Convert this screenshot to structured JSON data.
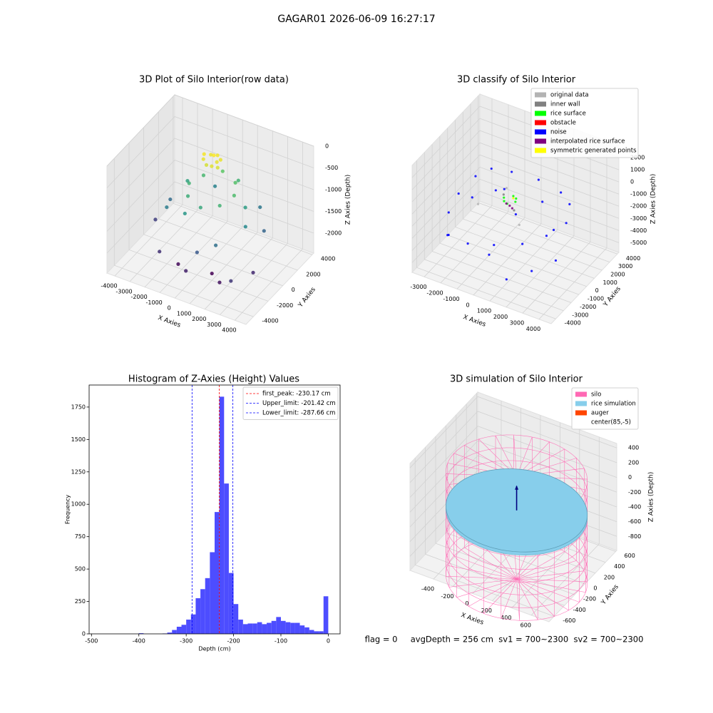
{
  "title": "GAGAR01 2026-06-09 16:27:17",
  "footer": "flag = 0     avgDepth = 256 cm  sv1 = 700~2300  sv2 = 700~2300",
  "chart_data": [
    {
      "type": "scatter3d",
      "title": "3D Plot of Silo Interior(row data)",
      "xlabel": "X Axies",
      "ylabel": "Y Axies",
      "zlabel": "Z Axies (Depth)",
      "xlim": [
        -4520,
        4740
      ],
      "ylim": [
        -5000,
        4200
      ],
      "zlim": [
        -2460,
        0
      ],
      "xticks": [
        -4000,
        -3000,
        -2000,
        -1000,
        0,
        1000,
        2000,
        3000,
        4000
      ],
      "yticks": [
        -4000,
        -2000,
        0,
        2000,
        4000
      ],
      "zticks": [
        -2000,
        -1500,
        -1000,
        -500,
        0
      ],
      "colormap": "viridis",
      "grid": true,
      "series": [
        {
          "x": [
            -600,
            -300,
            0,
            300,
            500,
            200,
            -200,
            -500,
            100,
            400,
            1500,
            1060,
            0,
            -1060,
            -1500,
            -1060,
            0,
            1060,
            2000,
            -2000,
            800,
            -800,
            2500,
            -2500,
            1500,
            -1000,
            3000,
            -3000,
            500,
            2000,
            -3500,
            -2000,
            0,
            2000,
            3500,
            1000,
            -1000,
            3000
          ],
          "y": [
            200,
            500,
            300,
            100,
            -200,
            -400,
            -300,
            -100,
            600,
            400,
            0,
            1060,
            1500,
            1060,
            0,
            -1060,
            -1500,
            -1060,
            500,
            800,
            2000,
            -2000,
            -500,
            -1000,
            -2500,
            2500,
            1000,
            500,
            -3000,
            2500,
            -500,
            -3000,
            -3500,
            -3000,
            -1500,
            -2000,
            -2500,
            -3500
          ],
          "z": [
            -150,
            -180,
            -120,
            -200,
            -250,
            -220,
            -260,
            -200,
            -160,
            -190,
            -800,
            -750,
            -700,
            -850,
            -900,
            -950,
            -1000,
            -900,
            -1100,
            -1050,
            -900,
            -1150,
            -1300,
            -1400,
            -1500,
            -1350,
            -1600,
            -1550,
            -1700,
            -1450,
            -1900,
            -2000,
            -2100,
            -2200,
            -2050,
            -2300,
            -2250,
            -1950
          ]
        }
      ]
    },
    {
      "type": "scatter3d",
      "title": "3D classify of Silo Interior",
      "xlabel": "X Axies",
      "ylabel": "Y Axies",
      "zlabel": "Z Axies (Depth)",
      "xlim": [
        -3740,
        4740
      ],
      "ylim": [
        -4600,
        4200
      ],
      "zlim": [
        -5800,
        3000
      ],
      "xticks": [
        -3000,
        -2000,
        -1000,
        0,
        1000,
        2000,
        3000,
        4000
      ],
      "yticks": [
        -4000,
        -3000,
        -2000,
        -1000,
        0,
        1000,
        2000,
        3000,
        4000
      ],
      "zticks": [
        -5000,
        -4000,
        -3000,
        -2000,
        -1000,
        0,
        1000,
        2000
      ],
      "grid": true,
      "legend": "upper right",
      "series": [
        {
          "name": "original data",
          "color": "#b3b3b3",
          "x": [
            -1500,
            1200,
            -800
          ],
          "y": [
            -800,
            -1200,
            1400
          ],
          "z": [
            -1600,
            -1700,
            -1400
          ]
        },
        {
          "name": "inner wall",
          "color": "#808080",
          "x": [
            600,
            -600
          ],
          "y": [
            -600,
            600
          ],
          "z": [
            -1200,
            -1300
          ]
        },
        {
          "name": "rice surface",
          "color": "#00ff00",
          "x": [
            400,
            85,
            -300,
            85,
            300,
            -150
          ],
          "y": [
            0,
            400,
            -5,
            -400,
            300,
            -300
          ],
          "z": [
            -1000,
            -950,
            -1000,
            -1050,
            -980,
            -1020
          ]
        },
        {
          "name": "obstacle",
          "color": "#ff0000",
          "x": [],
          "y": [],
          "z": []
        },
        {
          "name": "noise",
          "color": "#0000ff",
          "x": [
            -2500,
            -2000,
            -1000,
            500,
            2000,
            3000,
            3500,
            3000,
            2000,
            500,
            -1000,
            -2500,
            -3200,
            -3300,
            -2800,
            1500,
            2800,
            3800,
            -1500,
            1200,
            -500,
            2500,
            -2000,
            800,
            -700
          ],
          "y": [
            1000,
            2000,
            2500,
            2800,
            2500,
            1500,
            0,
            -1500,
            -2500,
            -3000,
            -3200,
            -2500,
            -1000,
            500,
            -2000,
            -3500,
            -3000,
            -2000,
            1500,
            1800,
            -1500,
            500,
            -500,
            -800,
            900
          ],
          "z": [
            -1000,
            -800,
            -900,
            -1000,
            -1100,
            -900,
            -1200,
            -1500,
            -2000,
            -2500,
            -3000,
            -3500,
            -3000,
            -2500,
            -4000,
            -4500,
            -3500,
            -2800,
            -2000,
            -1800,
            -4800,
            -2600,
            -1500,
            -1300,
            -1100
          ]
        },
        {
          "name": "interpolated rice surface",
          "color": "#800080",
          "x": [
            100,
            -200,
            300
          ],
          "y": [
            -100,
            100,
            -200
          ],
          "z": [
            -1400,
            -1500,
            -1450
          ]
        },
        {
          "name": "symmetric generated points",
          "color": "#ffff00",
          "x": [
            200
          ],
          "y": [
            150
          ],
          "z": [
            -900
          ]
        }
      ]
    },
    {
      "type": "histogram",
      "title": "Histogram of Z-Axies (Height) Values",
      "xlabel": "Depth (cm)",
      "ylabel": "Frequency",
      "color": "#4d4dff",
      "bins": [
        -400,
        -390,
        -380,
        -370,
        -360,
        -350,
        -340,
        -330,
        -320,
        -310,
        -300,
        -290,
        -280,
        -270,
        -260,
        -250,
        -240,
        -230,
        -220,
        -210,
        -200,
        -190,
        -180,
        -170,
        -160,
        -150,
        -140,
        -130,
        -120,
        -110,
        -100,
        -90,
        -80,
        -70,
        -60,
        -50,
        -40,
        -30,
        -20,
        -10,
        0
      ],
      "counts": [
        5,
        0,
        0,
        0,
        0,
        3,
        10,
        30,
        55,
        70,
        110,
        150,
        275,
        345,
        430,
        630,
        940,
        1830,
        1160,
        470,
        230,
        110,
        75,
        80,
        80,
        90,
        75,
        85,
        100,
        130,
        100,
        90,
        85,
        85,
        65,
        50,
        30,
        20,
        20,
        290
      ],
      "xlim": [
        -505,
        25
      ],
      "ylim": [
        0,
        1920
      ],
      "xticks": [
        -500,
        -400,
        -300,
        -200,
        -100,
        0
      ],
      "yticks": [
        0,
        250,
        500,
        750,
        1000,
        1250,
        1500,
        1750
      ],
      "legend": "upper right",
      "lines": [
        {
          "name": "first_peak: -230.17 cm",
          "value": -230.17,
          "color": "#ff0000"
        },
        {
          "name": "Upper_limit: -201.42 cm",
          "value": -201.42,
          "color": "#0000ff"
        },
        {
          "name": "Lower_limit: -287.66 cm",
          "value": -287.66,
          "color": "#0000ff"
        }
      ]
    },
    {
      "type": "silo3d",
      "title": "3D simulation of Silo Interior",
      "xlabel": "X Axies",
      "ylabel": "Y Axies",
      "zlabel": "Z Axies (Depth)",
      "xlim": [
        -640,
        780
      ],
      "ylim": [
        -700,
        620
      ],
      "zlim": [
        -990,
        460
      ],
      "xticks": [
        -400,
        -200,
        0,
        200,
        400,
        600
      ],
      "yticks": [
        -600,
        -400,
        -200,
        0,
        200,
        400,
        600
      ],
      "zticks": [
        -800,
        -600,
        -400,
        -200,
        0,
        200,
        400
      ],
      "grid": true,
      "legend": "upper right",
      "legend_items": [
        {
          "name": "silo",
          "color": "#ff69b4"
        },
        {
          "name": "rice simulation",
          "color": "#87ceeb"
        },
        {
          "name": "auger",
          "color": "#ff4500"
        },
        {
          "name": "center(85,-5)",
          "color": "#ffffff"
        }
      ],
      "silo": {
        "center": [
          85,
          -5
        ],
        "radius": 640,
        "zlim": [
          -1260,
          130
        ]
      },
      "rice_z": -330,
      "auger": {
        "color": "#000080",
        "z": [
          -330,
          0
        ]
      }
    }
  ]
}
